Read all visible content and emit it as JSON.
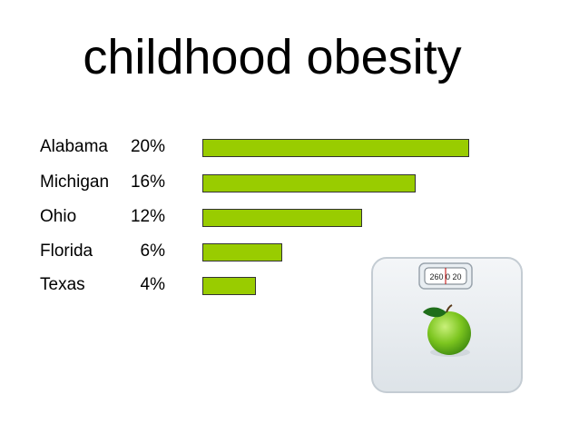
{
  "title": "childhood obesity",
  "chart_data": {
    "type": "bar",
    "orientation": "horizontal",
    "categories": [
      "Alabama",
      "Michigan",
      "Ohio",
      "Florida",
      "Texas"
    ],
    "value_labels": [
      "20%",
      "16%",
      "12%",
      "6%",
      "4%"
    ],
    "values": [
      20,
      16,
      12,
      6,
      4
    ],
    "unit": "%",
    "bar_color": "#99cc00",
    "grid": false,
    "xlim": [
      0,
      20
    ]
  },
  "illustration": {
    "scale_dial_text": "260 0 20",
    "icon": "bathroom-scale-with-green-apple"
  }
}
